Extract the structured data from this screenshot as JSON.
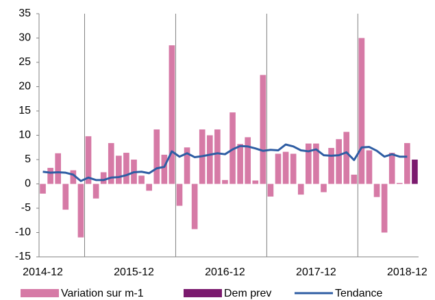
{
  "chart_data": {
    "type": "bar",
    "categories": [
      "2014-12",
      null,
      null,
      null,
      null,
      null,
      null,
      null,
      null,
      null,
      null,
      null,
      "2015-12",
      null,
      null,
      null,
      null,
      null,
      null,
      null,
      null,
      null,
      null,
      null,
      "2016-12",
      null,
      null,
      null,
      null,
      null,
      null,
      null,
      null,
      null,
      null,
      null,
      "2017-12",
      null,
      null,
      null,
      null,
      null,
      null,
      null,
      null,
      null,
      null,
      null,
      "2018-12",
      null
    ],
    "series": [
      {
        "name": "Variation sur m-1",
        "type": "bar",
        "color": "#d67aa6",
        "values": [
          -2.0,
          3.3,
          6.3,
          -5.3,
          2.8,
          -11,
          9.8,
          -3,
          2.4,
          8.4,
          5.8,
          6.4,
          5.0,
          1.7,
          -1.4,
          11.2,
          6.0,
          28.5,
          -4.5,
          7.5,
          -9.3,
          11.2,
          10.0,
          11.2,
          0.8,
          14.7,
          8.2,
          9.6,
          0.7,
          22.4,
          -2.6,
          6.2,
          6.6,
          6.2,
          -2.2,
          8.3,
          8.3,
          -1.7,
          7.4,
          9.2,
          10.7,
          1.9,
          30,
          6.9,
          -2.7,
          -10,
          6.4,
          0.2,
          8.4,
          null
        ]
      },
      {
        "name": "Dem prev",
        "type": "bar",
        "color": "#7b1a6e",
        "values": [
          null,
          null,
          null,
          null,
          null,
          null,
          null,
          null,
          null,
          null,
          null,
          null,
          null,
          null,
          null,
          null,
          null,
          null,
          null,
          null,
          null,
          null,
          null,
          null,
          null,
          null,
          null,
          null,
          null,
          null,
          null,
          null,
          null,
          null,
          null,
          null,
          null,
          null,
          null,
          null,
          null,
          null,
          null,
          null,
          null,
          null,
          null,
          null,
          null,
          5.0
        ]
      },
      {
        "name": "Tendance",
        "type": "line",
        "color": "#2e5da3",
        "values": [
          2.5,
          2.3,
          2.4,
          2.3,
          1.9,
          0.6,
          1.3,
          0.8,
          0.8,
          1.3,
          1.4,
          1.8,
          2.4,
          2.5,
          2.2,
          3.2,
          3.5,
          6.7,
          5.6,
          6.3,
          5.5,
          5.7,
          6.0,
          6.3,
          6.1,
          7.1,
          7.8,
          7.7,
          7.3,
          6.8,
          7.0,
          6.9,
          8.1,
          7.7,
          6.9,
          6.7,
          7.1,
          5.9,
          5.8,
          5.9,
          6.5,
          4.9,
          7.5,
          7.6,
          6.8,
          5.6,
          6.1,
          5.6,
          5.6,
          null
        ]
      }
    ],
    "ylim": [
      -15,
      35
    ],
    "yticks": [
      -15,
      -10,
      -5,
      0,
      5,
      10,
      15,
      20,
      25,
      30,
      35
    ],
    "grid": "x",
    "legend": "bottom"
  }
}
